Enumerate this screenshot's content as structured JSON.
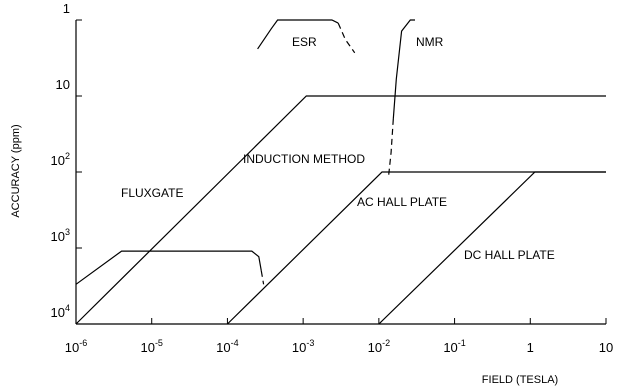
{
  "chart_data": {
    "type": "line",
    "title": "",
    "xlabel": "FIELD (TESLA)",
    "ylabel": "ACCURACY (ppm)",
    "x_scale": "log",
    "y_scale": "log",
    "xlim": [
      1e-06,
      10
    ],
    "ylim": [
      10000,
      1
    ],
    "grid": false,
    "legend": "none",
    "x_ticks": [
      {
        "base": "10",
        "exp": "-6",
        "value": 1e-06
      },
      {
        "base": "10",
        "exp": "-5",
        "value": 1e-05
      },
      {
        "base": "10",
        "exp": "-4",
        "value": 0.0001
      },
      {
        "base": "10",
        "exp": "-3",
        "value": 0.001
      },
      {
        "base": "10",
        "exp": "-2",
        "value": 0.01
      },
      {
        "base": "10",
        "exp": "-1",
        "value": 0.1
      },
      {
        "base": "1",
        "exp": "",
        "value": 1
      },
      {
        "base": "10",
        "exp": "",
        "value": 10
      }
    ],
    "y_ticks": [
      {
        "base": "1",
        "exp": "",
        "value": 1
      },
      {
        "base": "10",
        "exp": "",
        "value": 10
      },
      {
        "base": "10",
        "exp": "2",
        "value": 100
      },
      {
        "base": "10",
        "exp": "3",
        "value": 1000
      },
      {
        "base": "10",
        "exp": "4",
        "value": 10000
      }
    ],
    "series": [
      {
        "name": "FLUXGATE",
        "points": [
          [
            1e-06,
            3000
          ],
          [
            4e-06,
            1100
          ],
          [
            0.00021,
            1100
          ],
          [
            0.00026,
            1300
          ],
          [
            0.00028,
            2000
          ]
        ],
        "dashed_points": [
          [
            0.00028,
            2000
          ],
          [
            0.0003,
            3000
          ]
        ]
      },
      {
        "name": "INDUCTION METHOD",
        "points": [
          [
            1e-06,
            10000
          ],
          [
            0.0011,
            10
          ],
          [
            10,
            10
          ]
        ],
        "dashed_points": []
      },
      {
        "name": "AC HALL PLATE",
        "points": [
          [
            0.0001,
            10000
          ],
          [
            0.011,
            100
          ],
          [
            10,
            100
          ]
        ],
        "dashed_points": []
      },
      {
        "name": "DC HALL PLATE",
        "points": [
          [
            0.01,
            10000
          ],
          [
            1.15,
            100
          ],
          [
            10,
            100
          ]
        ],
        "dashed_points": []
      },
      {
        "name": "ESR",
        "points": [
          [
            0.00025,
            2.4
          ],
          [
            0.00038,
            1.3
          ],
          [
            0.00046,
            1
          ],
          [
            0.0024,
            1
          ],
          [
            0.0029,
            1.1
          ]
        ],
        "dashed_points": [
          [
            0.0029,
            1.1
          ],
          [
            0.0036,
            1.8
          ],
          [
            0.0048,
            2.7
          ]
        ]
      },
      {
        "name": "NMR",
        "points": [
          [
            0.03,
            1
          ],
          [
            0.026,
            1
          ],
          [
            0.02,
            1.4
          ],
          [
            0.017,
            6
          ],
          [
            0.0155,
            20
          ]
        ],
        "dashed_points": [
          [
            0.0155,
            20
          ],
          [
            0.0145,
            55
          ],
          [
            0.0135,
            110
          ]
        ]
      }
    ]
  }
}
